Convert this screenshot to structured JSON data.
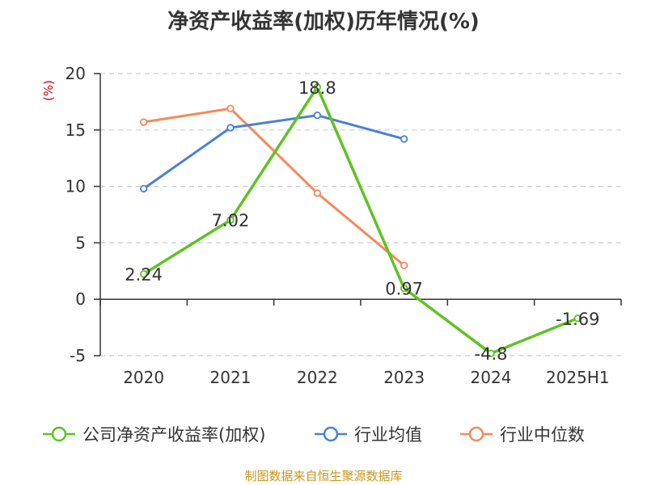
{
  "title": "净资产收益率(加权)历年情况(%)",
  "unit_label": "(%)",
  "source": "制图数据来自恒生聚源数据库",
  "colors": {
    "text": "#333333",
    "grid": "#cccccc",
    "axis": "#333333",
    "unit": "#cc0000",
    "source": "#c8961e"
  },
  "chart_data": {
    "type": "line",
    "categories": [
      "2020",
      "2021",
      "2022",
      "2023",
      "2024",
      "2025H1"
    ],
    "ylim": [
      -5,
      20
    ],
    "yticks": [
      -5,
      0,
      5,
      10,
      15,
      20
    ],
    "grid": true,
    "legend_position": "bottom",
    "series": [
      {
        "name": "公司净资产收益率(加权)",
        "color": "#5ec323",
        "values": [
          2.24,
          7.02,
          18.8,
          0.97,
          -4.8,
          -1.69
        ],
        "labels": [
          "2.24",
          "7.02",
          "18.8",
          "0.97",
          "-4.8",
          "-1.69"
        ]
      },
      {
        "name": "行业均值",
        "color": "#4a80d6",
        "values": [
          9.8,
          15.2,
          16.3,
          14.2,
          null,
          null
        ]
      },
      {
        "name": "行业中位数",
        "color": "#f5895a",
        "values": [
          15.7,
          16.9,
          9.4,
          3.0,
          null,
          null
        ]
      }
    ]
  }
}
